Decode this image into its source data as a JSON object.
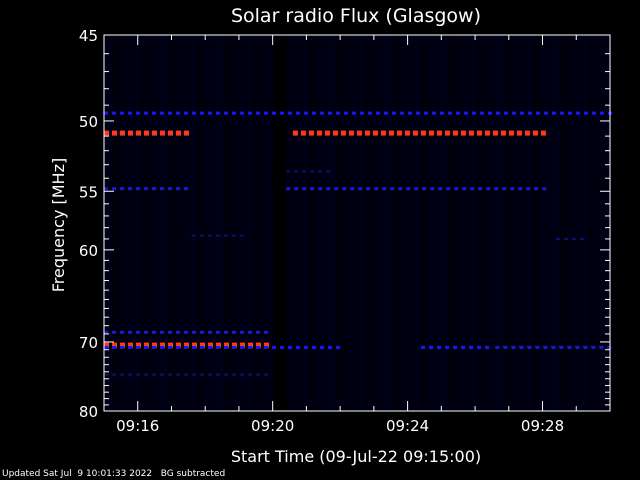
{
  "chart_data": {
    "type": "heatmap",
    "title": "Solar radio Flux (Glasgow)",
    "xlabel": "Start Time (09-Jul-22 09:15:00)",
    "ylabel": "Frequency [MHz]",
    "x_ticks": [
      "09:16",
      "09:20",
      "09:24",
      "09:28"
    ],
    "x_tick_minutes": [
      1,
      5,
      9,
      13
    ],
    "xlim_minutes": [
      0,
      15
    ],
    "y_ticks": [
      45,
      50,
      55,
      60,
      70,
      80
    ],
    "ylim_mhz": [
      45,
      80
    ],
    "y_scale": "reciprocal",
    "data_gap_minutes": [
      5,
      5.4
    ],
    "bands": [
      {
        "freq": 49.5,
        "t0": 0,
        "t1": 15,
        "level": "medium"
      },
      {
        "freq": 50.8,
        "t0": 0,
        "t1": 2.6,
        "level": "high"
      },
      {
        "freq": 50.8,
        "t0": 5.6,
        "t1": 13.2,
        "level": "high"
      },
      {
        "freq": 54.8,
        "t0": 0,
        "t1": 2.6,
        "level": "low"
      },
      {
        "freq": 54.8,
        "t0": 5.4,
        "t1": 13.2,
        "level": "low"
      },
      {
        "freq": 53.5,
        "t0": 5.4,
        "t1": 6.8,
        "level": "faint"
      },
      {
        "freq": 58.7,
        "t0": 2.6,
        "t1": 4.2,
        "level": "faint"
      },
      {
        "freq": 59.0,
        "t0": 13.4,
        "t1": 14.2,
        "level": "faint"
      },
      {
        "freq": 68.8,
        "t0": 0,
        "t1": 5.0,
        "level": "low"
      },
      {
        "freq": 70.4,
        "t0": 0,
        "t1": 5.0,
        "level": "high"
      },
      {
        "freq": 70.7,
        "t0": 0,
        "t1": 7.0,
        "level": "medium"
      },
      {
        "freq": 70.7,
        "t0": 9.4,
        "t1": 11.4,
        "level": "medium"
      },
      {
        "freq": 70.7,
        "t0": 11.6,
        "t1": 15,
        "level": "low"
      },
      {
        "freq": 74.4,
        "t0": 0,
        "t1": 5.0,
        "level": "faint"
      }
    ],
    "colors": {
      "high": "#ff3a1a",
      "medium": "#1818ff",
      "low": "#1a1ad0",
      "faint": "#10106a",
      "background": "#000014",
      "axis": "#ffffff"
    }
  },
  "footer": {
    "updated": "Updated Sat Jul  9 10:01:33 2022",
    "note": "BG subtracted"
  }
}
